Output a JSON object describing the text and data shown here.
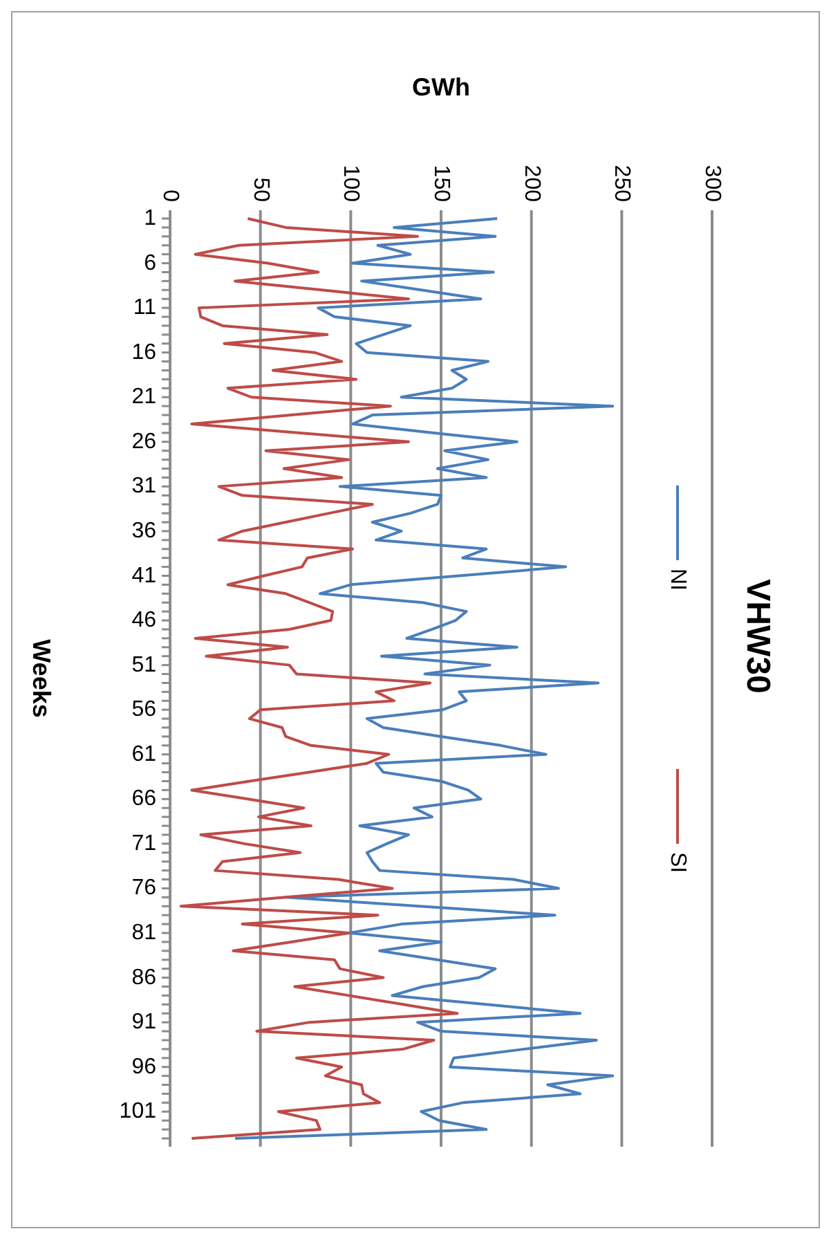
{
  "chart_data": {
    "type": "line",
    "orientation": "horizontal",
    "title": "VHW30",
    "xlabel": "GWh",
    "ylabel": "Weeks",
    "xlim": [
      0,
      300
    ],
    "xticks": [
      0,
      50,
      100,
      150,
      200,
      250,
      300
    ],
    "grid": "x",
    "legend": "right",
    "line_style": "solid",
    "marker": "none",
    "categories": [
      "1",
      null,
      null,
      null,
      null,
      "6",
      null,
      null,
      null,
      null,
      "11",
      null,
      null,
      null,
      null,
      "16",
      null,
      null,
      null,
      null,
      "21",
      null,
      null,
      null,
      null,
      "26",
      null,
      null,
      null,
      null,
      "31",
      null,
      null,
      null,
      null,
      "36",
      null,
      null,
      null,
      null,
      "41",
      null,
      null,
      null,
      null,
      "46",
      null,
      null,
      null,
      null,
      "51",
      null,
      null,
      null,
      null,
      "56",
      null,
      null,
      null,
      null,
      "61",
      null,
      null,
      null,
      null,
      "66",
      null,
      null,
      null,
      null,
      "71",
      null,
      null,
      null,
      null,
      "76",
      null,
      null,
      null,
      null,
      "81",
      null,
      null,
      null,
      null,
      "86",
      null,
      null,
      null,
      null,
      "91",
      null,
      null,
      null,
      null,
      "96",
      null,
      null,
      null,
      null,
      "101",
      null,
      null,
      null
    ],
    "series": [
      {
        "name": "NI",
        "color": "#4a7ebb",
        "values": [
          181,
          124,
          180,
          115,
          133,
          101,
          179,
          106,
          139,
          172,
          82,
          91,
          133,
          118,
          103,
          109,
          176,
          156,
          164,
          156,
          128,
          245,
          112,
          101,
          146,
          192,
          152,
          176,
          148,
          175,
          94,
          150,
          148,
          133,
          112,
          128,
          114,
          175,
          162,
          219,
          160,
          100,
          83,
          140,
          164,
          158,
          145,
          131,
          192,
          117,
          177,
          141,
          237,
          160,
          164,
          151,
          109,
          118,
          150,
          183,
          208,
          114,
          118,
          150,
          165,
          172,
          135,
          145,
          105,
          132,
          120,
          109,
          112,
          116,
          190,
          215,
          64,
          138,
          213,
          128,
          99,
          150,
          116,
          148,
          180,
          171,
          140,
          123,
          175,
          227,
          137,
          150,
          236,
          196,
          157,
          155,
          245,
          209,
          227,
          162,
          139,
          149,
          175,
          36
        ]
      },
      {
        "name": "SI",
        "color": "#be4b48",
        "values": [
          43,
          64,
          137,
          38,
          14,
          54,
          82,
          36,
          84,
          132,
          16,
          17,
          29,
          87,
          30,
          80,
          95,
          57,
          103,
          32,
          45,
          122,
          67,
          12,
          72,
          132,
          53,
          99,
          63,
          95,
          27,
          40,
          112,
          88,
          64,
          40,
          27,
          101,
          76,
          73,
          52,
          32,
          64,
          77,
          90,
          89,
          66,
          14,
          65,
          20,
          66,
          70,
          144,
          114,
          124,
          50,
          44,
          62,
          64,
          78,
          121,
          109,
          77,
          44,
          12,
          43,
          74,
          49,
          78,
          17,
          41,
          72,
          29,
          25,
          93,
          123,
          64,
          6,
          115,
          40,
          99,
          67,
          35,
          91,
          94,
          118,
          69,
          99,
          129,
          159,
          77,
          48,
          146,
          129,
          70,
          95,
          86,
          106,
          107,
          116,
          60,
          81,
          83,
          12
        ]
      }
    ]
  }
}
